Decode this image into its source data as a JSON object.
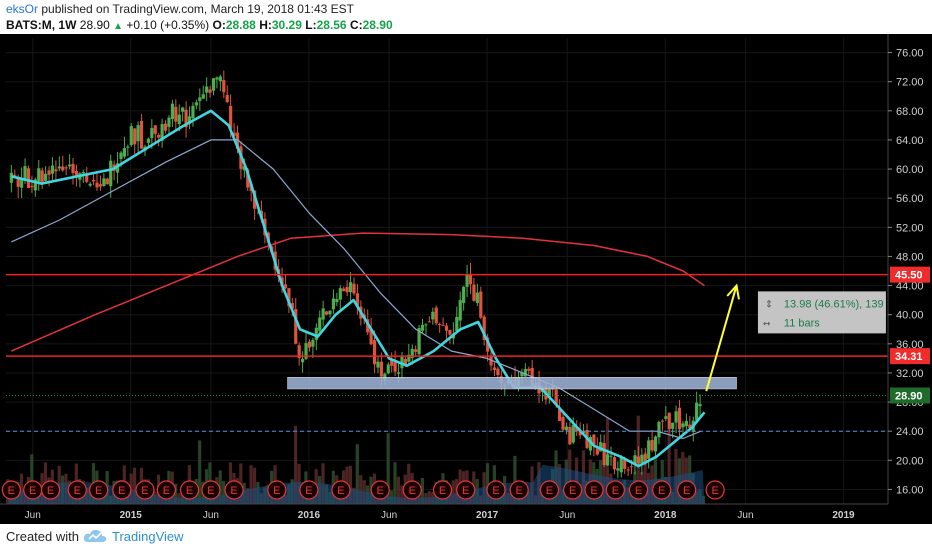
{
  "header": {
    "author": "eksOr",
    "published": " published on TradingView.com, March 19, 2018 01:43 EST",
    "symbol": "BATS:M, 1W",
    "last": "28.90",
    "change": "+0.10 (+0.35%)",
    "open_label": "O:",
    "open": "28.88",
    "high_label": "H:",
    "high": "30.29",
    "low_label": "L:",
    "low": "28.56",
    "close_label": "C:",
    "close": "28.90"
  },
  "footer": {
    "created_with": "Created with",
    "brand": "TradingView"
  },
  "colors": {
    "background": "#000000",
    "up_candle": "#4cae4c",
    "down_candle": "#e0533f",
    "ema_fast": "#3fd6df",
    "sma_mid": "#8ea7cf",
    "sma_slow": "#e3323f",
    "hline": "#ee2424",
    "support_zone": "#9fb3d8",
    "arrow": "#ffff33",
    "dashed": "#5b8fd6",
    "price_tag": "#ef2b2b"
  },
  "chart_data": {
    "type": "candlestick",
    "symbol": "BATS:M",
    "interval": "1W",
    "y_ticks": [
      "76.00",
      "72.00",
      "68.00",
      "64.00",
      "60.00",
      "56.00",
      "52.00",
      "48.00",
      "44.00",
      "40.00",
      "36.00",
      "32.00",
      "28.00",
      "24.00",
      "20.00",
      "16.00"
    ],
    "ylim": [
      14,
      78
    ],
    "x_ticks": [
      {
        "label": "Jun",
        "t": 2014.45
      },
      {
        "label": "2015",
        "t": 2015.0
      },
      {
        "label": "Jun",
        "t": 2015.45
      },
      {
        "label": "2016",
        "t": 2016.0
      },
      {
        "label": "Jun",
        "t": 2016.45
      },
      {
        "label": "2017",
        "t": 2017.0
      },
      {
        "label": "Jun",
        "t": 2017.45
      },
      {
        "label": "2018",
        "t": 2018.0
      },
      {
        "label": "Jun",
        "t": 2018.45
      },
      {
        "label": "2019",
        "t": 2019.0
      }
    ],
    "price_series": [
      [
        2014.33,
        58
      ],
      [
        2014.42,
        59
      ],
      [
        2014.52,
        59
      ],
      [
        2014.62,
        61
      ],
      [
        2014.72,
        60
      ],
      [
        2014.82,
        56
      ],
      [
        2014.92,
        62
      ],
      [
        2015.0,
        65
      ],
      [
        2015.08,
        64
      ],
      [
        2015.16,
        66
      ],
      [
        2015.25,
        68
      ],
      [
        2015.33,
        67
      ],
      [
        2015.42,
        71
      ],
      [
        2015.49,
        73
      ],
      [
        2015.55,
        67
      ],
      [
        2015.62,
        60
      ],
      [
        2015.68,
        56
      ],
      [
        2015.75,
        51
      ],
      [
        2015.82,
        47
      ],
      [
        2015.88,
        42
      ],
      [
        2015.95,
        35
      ],
      [
        2016.0,
        35
      ],
      [
        2016.08,
        40
      ],
      [
        2016.16,
        43
      ],
      [
        2016.25,
        44
      ],
      [
        2016.33,
        38
      ],
      [
        2016.4,
        32
      ],
      [
        2016.48,
        33
      ],
      [
        2016.56,
        34
      ],
      [
        2016.64,
        38
      ],
      [
        2016.72,
        40
      ],
      [
        2016.8,
        36
      ],
      [
        2016.88,
        45
      ],
      [
        2016.95,
        42
      ],
      [
        2017.0,
        36
      ],
      [
        2017.05,
        30
      ],
      [
        2017.13,
        31
      ],
      [
        2017.2,
        31
      ],
      [
        2017.28,
        31
      ],
      [
        2017.36,
        29
      ],
      [
        2017.44,
        23
      ],
      [
        2017.52,
        24
      ],
      [
        2017.6,
        22
      ],
      [
        2017.68,
        20
      ],
      [
        2017.76,
        20
      ],
      [
        2017.84,
        19
      ],
      [
        2017.92,
        22
      ],
      [
        2018.0,
        26
      ],
      [
        2018.08,
        25
      ],
      [
        2018.16,
        26
      ],
      [
        2018.2,
        28.9
      ]
    ],
    "ema_fast": [
      [
        2014.33,
        59
      ],
      [
        2014.5,
        58
      ],
      [
        2014.7,
        59
      ],
      [
        2014.9,
        60
      ],
      [
        2015.1,
        63
      ],
      [
        2015.3,
        66
      ],
      [
        2015.45,
        68
      ],
      [
        2015.55,
        66
      ],
      [
        2015.65,
        60
      ],
      [
        2015.75,
        52
      ],
      [
        2015.85,
        44
      ],
      [
        2015.95,
        38
      ],
      [
        2016.05,
        37
      ],
      [
        2016.15,
        40
      ],
      [
        2016.25,
        42
      ],
      [
        2016.35,
        38
      ],
      [
        2016.45,
        34
      ],
      [
        2016.55,
        33
      ],
      [
        2016.7,
        35
      ],
      [
        2016.85,
        38
      ],
      [
        2016.95,
        39
      ],
      [
        2017.05,
        34
      ],
      [
        2017.15,
        30
      ],
      [
        2017.3,
        30
      ],
      [
        2017.45,
        26
      ],
      [
        2017.6,
        22
      ],
      [
        2017.75,
        20.5
      ],
      [
        2017.85,
        19.2
      ],
      [
        2017.95,
        20.5
      ],
      [
        2018.05,
        22.5
      ],
      [
        2018.15,
        24.5
      ],
      [
        2018.22,
        26.6
      ]
    ],
    "sma_mid": [
      [
        2014.33,
        50
      ],
      [
        2014.6,
        53
      ],
      [
        2014.9,
        57
      ],
      [
        2015.2,
        61
      ],
      [
        2015.45,
        64
      ],
      [
        2015.6,
        64
      ],
      [
        2015.8,
        60
      ],
      [
        2016.0,
        54
      ],
      [
        2016.2,
        49
      ],
      [
        2016.4,
        43
      ],
      [
        2016.6,
        38
      ],
      [
        2016.8,
        35
      ],
      [
        2017.0,
        34
      ],
      [
        2017.2,
        32
      ],
      [
        2017.4,
        30
      ],
      [
        2017.6,
        27
      ],
      [
        2017.8,
        24
      ],
      [
        2017.95,
        24
      ],
      [
        2018.1,
        23
      ],
      [
        2018.2,
        24
      ]
    ],
    "sma_slow": [
      [
        2014.33,
        35
      ],
      [
        2014.8,
        40
      ],
      [
        2015.2,
        44
      ],
      [
        2015.6,
        48
      ],
      [
        2015.9,
        50.5
      ],
      [
        2016.3,
        51.2
      ],
      [
        2016.8,
        51
      ],
      [
        2017.2,
        50.5
      ],
      [
        2017.6,
        49.5
      ],
      [
        2017.9,
        48
      ],
      [
        2018.1,
        46
      ],
      [
        2018.22,
        44
      ]
    ],
    "horizontal_lines": [
      {
        "price": 45.5,
        "label": "45.50"
      },
      {
        "price": 34.31,
        "label": "34.31"
      }
    ],
    "last_price": {
      "price": 28.9,
      "label": "28.90"
    },
    "dashed_level": 24,
    "support_zone": {
      "from": 2015.88,
      "to": 2018.4,
      "low": 29.8,
      "high": 31.4
    },
    "arrow": {
      "from": [
        2018.23,
        29.5
      ],
      "to": [
        2018.4,
        44
      ]
    },
    "measure": {
      "line1": "13.98 (46.61%), 139",
      "line2": "11 bars"
    },
    "earnings_markers": [
      2014.33,
      2014.45,
      2014.55,
      2014.7,
      2014.82,
      2014.95,
      2015.08,
      2015.2,
      2015.33,
      2015.45,
      2015.58,
      2015.82,
      2016.0,
      2016.18,
      2016.4,
      2016.58,
      2016.75,
      2016.88,
      2017.05,
      2017.18,
      2017.35,
      2017.48,
      2017.6,
      2017.72,
      2017.85,
      2017.98,
      2018.12,
      2018.28
    ],
    "earnings_label": "E"
  }
}
